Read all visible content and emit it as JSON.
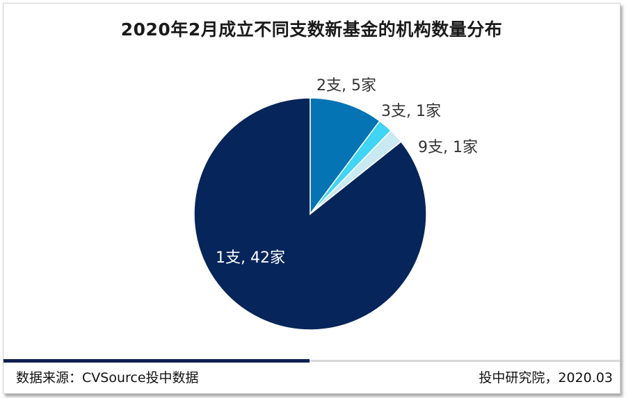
{
  "chart_data": {
    "type": "pie",
    "title": "2020年2月成立不同支数新基金的机构数量分布",
    "categories": [
      "1支",
      "2支",
      "3支",
      "9支"
    ],
    "values": [
      42,
      5,
      1,
      1
    ],
    "labels": [
      "1支, 42家",
      "2支, 5家",
      "3支, 1家",
      "9支, 1家"
    ],
    "colors": [
      "#06255a",
      "#0574b5",
      "#40d4f5",
      "#c9e9f3"
    ],
    "start_angle_deg": 0,
    "direction": "clockwise",
    "legend": "none"
  },
  "footer": {
    "source": "数据来源：CVSource投中数据",
    "org_date": "投中研究院，2020.03"
  }
}
